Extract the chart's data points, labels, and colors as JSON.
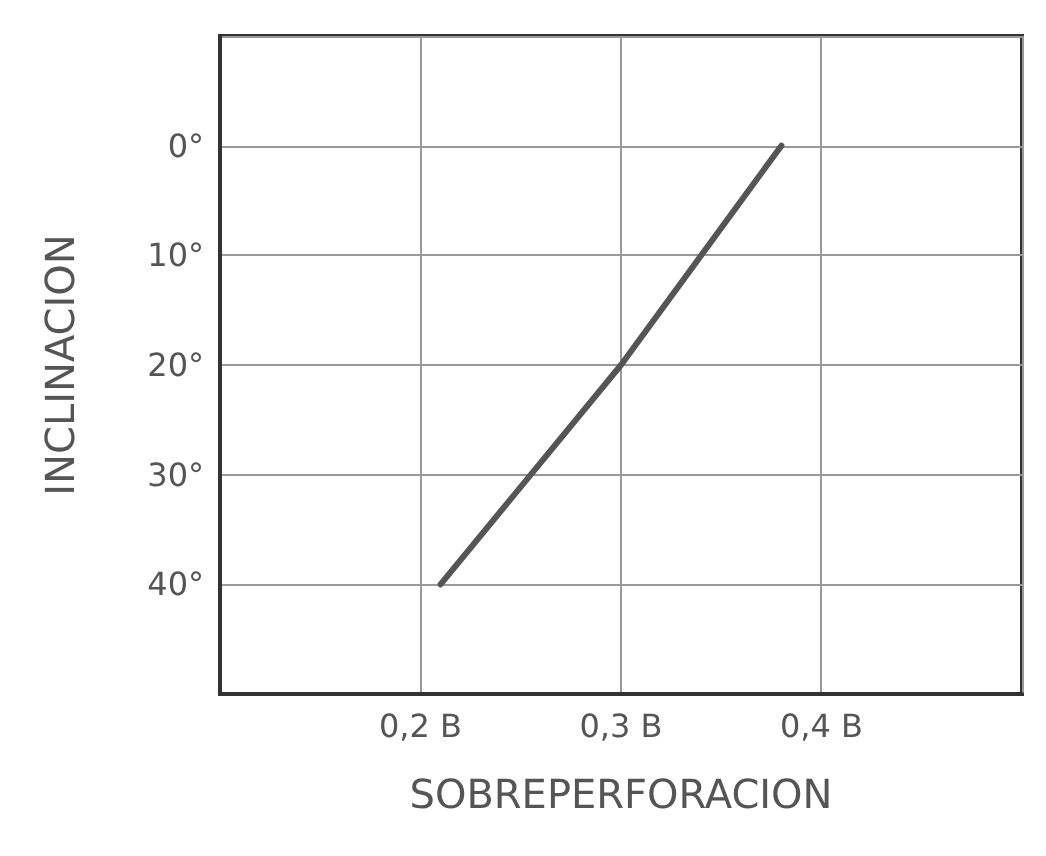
{
  "chart_data": {
    "type": "line",
    "xlabel": "SOBREPERFORACION",
    "ylabel": "INCLINACION",
    "x": [
      0.21,
      0.3,
      0.38
    ],
    "series": [
      {
        "color": "#555555",
        "values": [
          40,
          20,
          0
        ]
      }
    ],
    "xlim": [
      0.1,
      0.5
    ],
    "xticks": [
      {
        "value": 0.2,
        "label": "0,2 B"
      },
      {
        "value": 0.3,
        "label": "0,3 B"
      },
      {
        "value": 0.4,
        "label": "0,4 B"
      }
    ],
    "ylim": [
      50,
      -10
    ],
    "yticks": [
      {
        "value": 0,
        "label": "0°"
      },
      {
        "value": 10,
        "label": "10°"
      },
      {
        "value": 20,
        "label": "20°"
      },
      {
        "value": 30,
        "label": "30°"
      },
      {
        "value": 40,
        "label": "40°"
      }
    ],
    "grid": true,
    "marker": "none",
    "line_style": "solid"
  }
}
